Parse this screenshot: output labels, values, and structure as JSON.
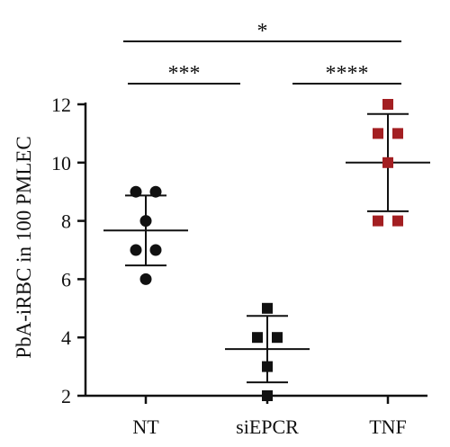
{
  "chart_data": {
    "type": "scatter",
    "ylabel": "PbA-iRBC in 100 PMLEC",
    "ylim": [
      2,
      12
    ],
    "yticks": [
      2,
      4,
      6,
      8,
      10,
      12
    ],
    "groups": [
      {
        "label": "NT",
        "marker": "circle",
        "color": "#111111",
        "points": [
          9,
          9,
          8,
          7,
          7,
          6
        ],
        "mean": 7.67,
        "sd_upper": 8.87,
        "sd_lower": 6.47
      },
      {
        "label": "siEPCR",
        "marker": "square",
        "color": "#111111",
        "points": [
          5,
          4,
          4,
          3,
          2
        ],
        "mean": 3.6,
        "sd_upper": 4.74,
        "sd_lower": 2.46
      },
      {
        "label": "TNF",
        "marker": "square",
        "color": "#a31f22",
        "points": [
          12,
          11,
          11,
          10,
          8,
          8
        ],
        "mean": 10.0,
        "sd_upper": 11.67,
        "sd_lower": 8.33
      }
    ],
    "significance": [
      {
        "from": 0,
        "to": 1,
        "label": "***"
      },
      {
        "from": 1,
        "to": 2,
        "label": "****"
      },
      {
        "from": 0,
        "to": 2,
        "label": "*"
      }
    ]
  }
}
